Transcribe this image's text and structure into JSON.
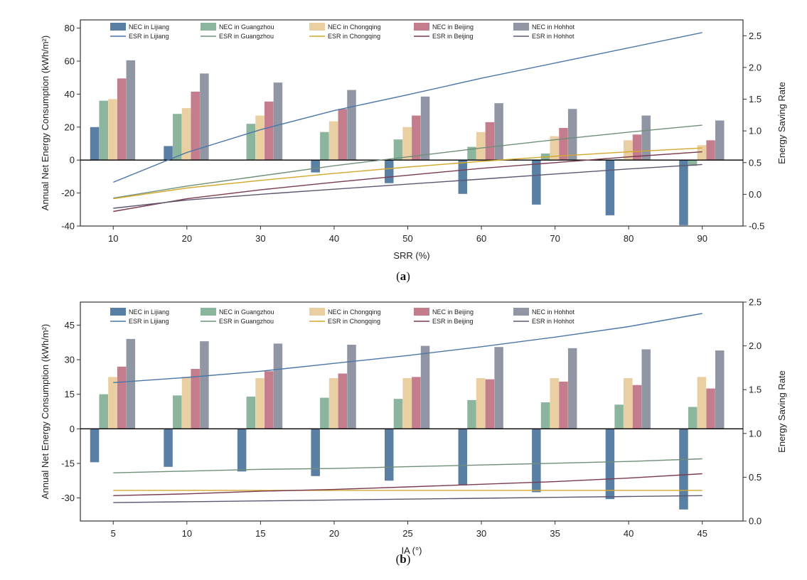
{
  "chart_data": [
    {
      "type": "bar",
      "caption": {
        "open": "(",
        "letter": "a",
        "close": ")"
      },
      "xlabel": "SRR (%)",
      "ylabel": "Annual Net Energy Consumption (kWh/m²)",
      "y2label": "Energy Saving Rate",
      "categories": [
        "10",
        "20",
        "30",
        "40",
        "50",
        "60",
        "70",
        "80",
        "90"
      ],
      "ylim": [
        -40,
        85
      ],
      "yticks": [
        -40,
        -20,
        0,
        20,
        40,
        60,
        80
      ],
      "y2lim": [
        -0.5,
        2.75
      ],
      "y2ticks": [
        -0.5,
        0.0,
        0.5,
        1.0,
        1.5,
        2.0,
        2.5
      ],
      "y2tick_labels": [
        "-0.5",
        "0.0",
        "0.5",
        "1.0",
        "1.5",
        "2.0",
        "2.5"
      ],
      "bar_series": [
        {
          "name": "NEC in Lijiang",
          "color": "#5a7fa5",
          "values": [
            20,
            8.5,
            0,
            -7.5,
            -14,
            -20.5,
            -27,
            -33.5,
            -39.5
          ]
        },
        {
          "name": "NEC in Guangzhou",
          "color": "#8bb59d",
          "values": [
            36,
            28,
            22,
            17,
            12.5,
            8,
            4,
            0.5,
            -3.5
          ]
        },
        {
          "name": "NEC in Chongqing",
          "color": "#e9cfa1",
          "values": [
            37,
            31.5,
            27,
            23.5,
            20,
            17,
            14.5,
            12,
            9
          ]
        },
        {
          "name": "NEC in Beijing",
          "color": "#c47d8c",
          "values": [
            49.5,
            41.5,
            35.5,
            31,
            27,
            23,
            19.5,
            15.5,
            12
          ]
        },
        {
          "name": "NEC in Hohhot",
          "color": "#9096a3",
          "values": [
            60.5,
            52.5,
            47,
            42.5,
            38.5,
            34.5,
            31,
            27,
            24
          ]
        }
      ],
      "line_series": [
        {
          "name": "ESR in Lijiang",
          "color": "#4a77a8",
          "values": [
            0.19,
            0.66,
            1.02,
            1.32,
            1.57,
            1.83,
            2.07,
            2.31,
            2.55
          ]
        },
        {
          "name": "ESR in Guangzhou",
          "color": "#6f8f79",
          "values": [
            -0.06,
            0.13,
            0.29,
            0.45,
            0.59,
            0.73,
            0.86,
            0.98,
            1.09
          ]
        },
        {
          "name": "ESR in Chongqing",
          "color": "#d4a82e",
          "values": [
            -0.07,
            0.1,
            0.22,
            0.33,
            0.43,
            0.52,
            0.6,
            0.67,
            0.73
          ]
        },
        {
          "name": "ESR in Beijing",
          "color": "#7a3c4e",
          "values": [
            -0.27,
            -0.07,
            0.07,
            0.19,
            0.3,
            0.41,
            0.5,
            0.59,
            0.67
          ]
        },
        {
          "name": "ESR in Hohhot",
          "color": "#5e5670",
          "values": [
            -0.22,
            -0.09,
            0.0,
            0.08,
            0.16,
            0.24,
            0.32,
            0.4,
            0.47
          ]
        }
      ]
    },
    {
      "type": "bar",
      "caption": {
        "open": "(",
        "letter": "b",
        "close": ")"
      },
      "xlabel": "IA (°)",
      "ylabel": "Annual Net Energy Consumption (kWh/m²)",
      "y2label": "Energy Saving Rate",
      "categories": [
        "5",
        "10",
        "15",
        "20",
        "25",
        "30",
        "35",
        "40",
        "45"
      ],
      "ylim": [
        -40,
        55
      ],
      "yticks": [
        -30,
        -15,
        0,
        15,
        30,
        45
      ],
      "y2lim": [
        0.0,
        2.5
      ],
      "y2ticks": [
        0.0,
        0.5,
        1.0,
        1.5,
        2.0,
        2.5
      ],
      "y2tick_labels": [
        "0.0",
        "0.5",
        "1.0",
        "1.5",
        "2.0",
        "2.5"
      ],
      "bar_series": [
        {
          "name": "NEC in Lijiang",
          "color": "#5a7fa5",
          "values": [
            -14.5,
            -16.5,
            -18.5,
            -20.5,
            -22.5,
            -24.5,
            -27.5,
            -30.5,
            -35
          ]
        },
        {
          "name": "NEC in Guangzhou",
          "color": "#8bb59d",
          "values": [
            15,
            14.5,
            14,
            13.5,
            13,
            12.5,
            11.5,
            10.5,
            9.5
          ]
        },
        {
          "name": "NEC in Chongqing",
          "color": "#e9cfa1",
          "values": [
            22.5,
            22.5,
            22,
            22,
            22,
            22,
            22,
            22,
            22.5
          ]
        },
        {
          "name": "NEC in Beijing",
          "color": "#c47d8c",
          "values": [
            27,
            26,
            25,
            24,
            22.5,
            21.5,
            20.5,
            19,
            17.5
          ]
        },
        {
          "name": "NEC in Hohhot",
          "color": "#9096a3",
          "values": [
            39,
            38,
            37,
            36.5,
            36,
            35.5,
            35,
            34.5,
            34
          ]
        }
      ],
      "line_series": [
        {
          "name": "ESR in Lijiang",
          "color": "#4a77a8",
          "values": [
            1.58,
            1.64,
            1.71,
            1.8,
            1.89,
            1.99,
            2.1,
            2.22,
            2.37
          ]
        },
        {
          "name": "ESR in Guangzhou",
          "color": "#6f8f79",
          "values": [
            0.55,
            0.57,
            0.59,
            0.6,
            0.62,
            0.64,
            0.66,
            0.68,
            0.71
          ]
        },
        {
          "name": "ESR in Chongqing",
          "color": "#d4a82e",
          "values": [
            0.35,
            0.35,
            0.35,
            0.35,
            0.35,
            0.35,
            0.35,
            0.35,
            0.35
          ]
        },
        {
          "name": "ESR in Beijing",
          "color": "#7a3c4e",
          "values": [
            0.29,
            0.31,
            0.34,
            0.36,
            0.39,
            0.42,
            0.45,
            0.49,
            0.54
          ]
        },
        {
          "name": "ESR in Hohhot",
          "color": "#5e5670",
          "values": [
            0.21,
            0.22,
            0.23,
            0.24,
            0.25,
            0.26,
            0.27,
            0.28,
            0.29
          ]
        }
      ]
    }
  ]
}
